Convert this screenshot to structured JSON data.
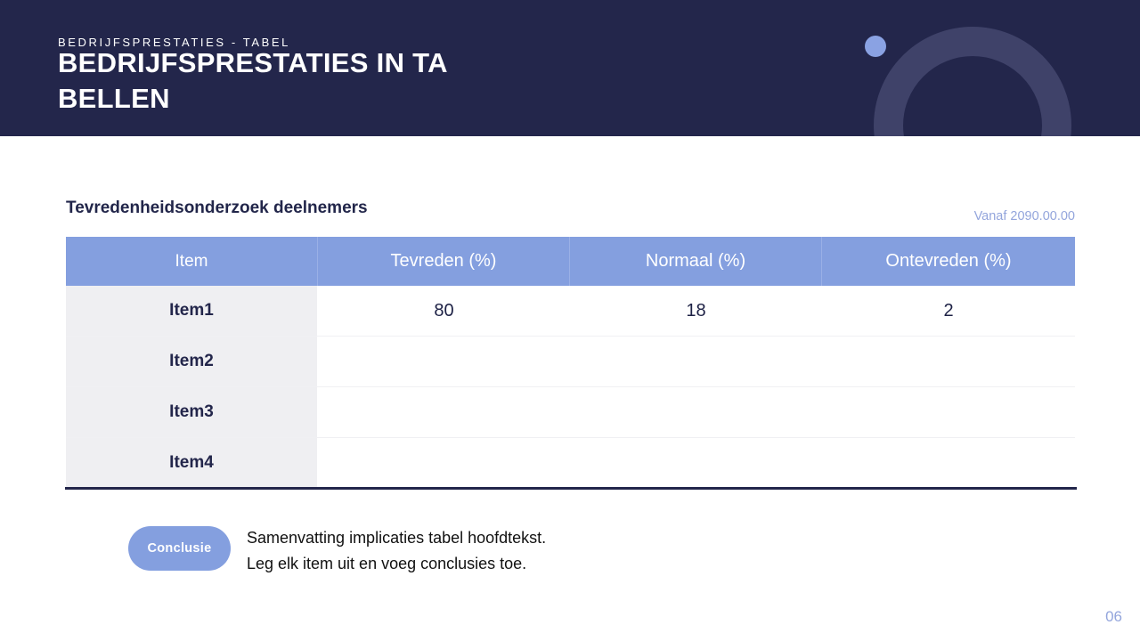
{
  "header": {
    "eyebrow": "BEDRIJFSPRESTATIES - TABEL",
    "title_line1": "BEDRIJFSPRESTATIES IN TA",
    "title_line2": "BELLEN"
  },
  "section": {
    "title": "Tevredenheidsonderzoek deelnemers",
    "note": "Vanaf 2090.00.00"
  },
  "table": {
    "columns": [
      "Item",
      "Tevreden (%)",
      "Normaal (%)",
      "Ontevreden (%)"
    ],
    "rows": [
      {
        "label": "Item1",
        "values": [
          "80",
          "18",
          "2"
        ]
      },
      {
        "label": "Item2",
        "values": [
          "",
          "",
          ""
        ]
      },
      {
        "label": "Item3",
        "values": [
          "",
          "",
          ""
        ]
      },
      {
        "label": "Item4",
        "values": [
          "",
          "",
          ""
        ]
      }
    ]
  },
  "conclusion": {
    "button_label": "Conclusie",
    "line1": "Samenvatting implicaties tabel hoofdtekst.",
    "line2": "Leg elk item uit en voeg conclusies toe."
  },
  "page_number": "06",
  "colors": {
    "header_bg": "#23264b",
    "accent": "#849fdf",
    "label_bg": "#efeff2"
  }
}
